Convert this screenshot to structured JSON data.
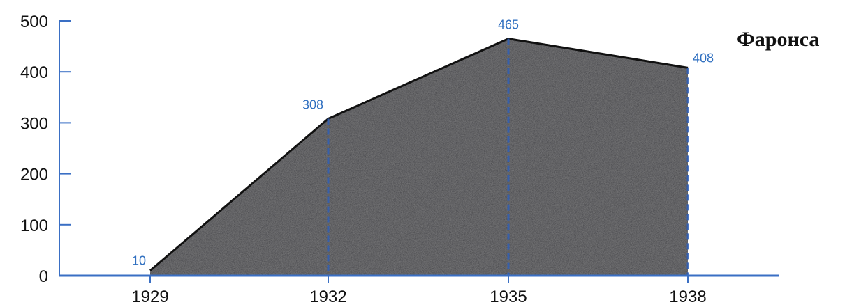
{
  "chart_data": {
    "type": "area",
    "title": "",
    "xlabel": "",
    "ylabel": "",
    "x": [
      "1929",
      "1932",
      "1935",
      "1938"
    ],
    "series": [
      {
        "name": "Фаронса",
        "values": [
          10,
          308,
          465,
          408
        ]
      }
    ],
    "data_labels": [
      "10",
      "308",
      "465",
      "408"
    ],
    "y_ticks": [
      "0",
      "100",
      "200",
      "300",
      "400",
      "500"
    ],
    "ylim": [
      0,
      500
    ],
    "grid": false,
    "legend": "top-right",
    "colors": {
      "fill": "#3d3d42",
      "outline": "#111111",
      "axis": "#3a6fc4",
      "drop_lines": "#2f5fb8",
      "data_labels": "#2f6fc0"
    }
  }
}
